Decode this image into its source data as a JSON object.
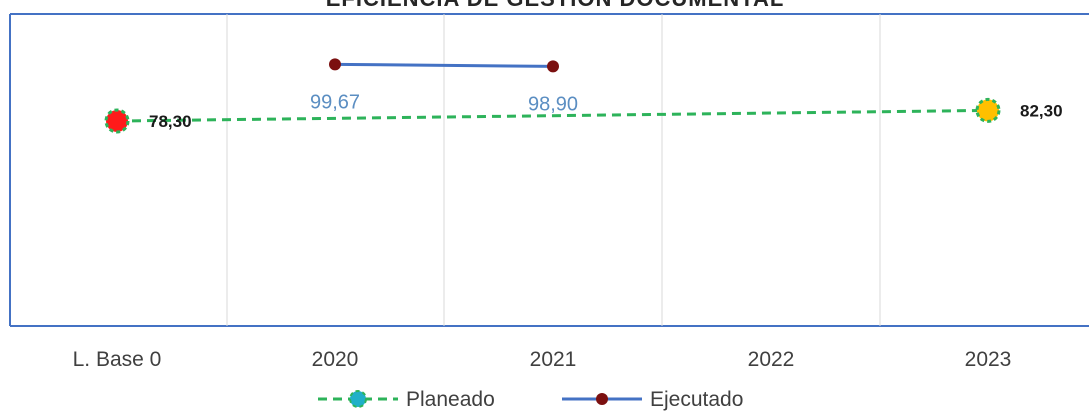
{
  "chart_data": {
    "type": "line",
    "title": "EFICIENCIA DE GESTIÓN DOCUMENTAL",
    "categories": [
      "L. Base 0",
      "2020",
      "2021",
      "2022",
      "2023"
    ],
    "series": [
      {
        "name": "Planeado",
        "style": "dashed",
        "line_color": "#2db35a",
        "marker_colors": [
          "#ff1a1a",
          null,
          null,
          null,
          "#ffc000"
        ],
        "marker_edge_color": "#2db35a",
        "values": [
          78.3,
          null,
          null,
          null,
          82.3
        ],
        "labels": [
          "78,30",
          null,
          null,
          null,
          "82,30"
        ]
      },
      {
        "name": "Ejecutado",
        "style": "solid",
        "line_color": "#4472c4",
        "marker_color": "#7b1010",
        "values": [
          null,
          99.67,
          98.9,
          null,
          null
        ],
        "labels": [
          null,
          "99,67",
          "98,90",
          null,
          null
        ]
      }
    ],
    "legend_position": "bottom",
    "gridlines": "vertical",
    "plot_border_color": "#4472c4"
  }
}
